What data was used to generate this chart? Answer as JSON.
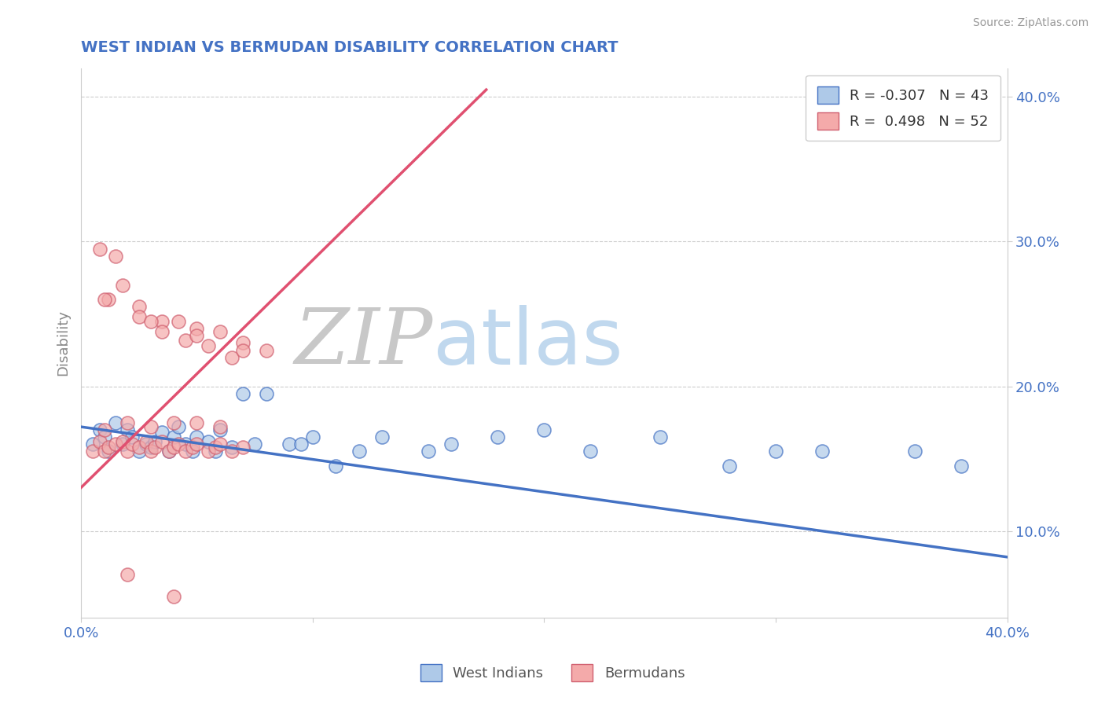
{
  "title": "WEST INDIAN VS BERMUDAN DISABILITY CORRELATION CHART",
  "source": "Source: ZipAtlas.com",
  "ylabel": "Disability",
  "xlim": [
    0.0,
    0.4
  ],
  "ylim": [
    0.04,
    0.42
  ],
  "legend_R1": "-0.307",
  "legend_N1": "43",
  "legend_R2": "0.498",
  "legend_N2": "52",
  "color_west_indian_fill": "#aec9e8",
  "color_west_indian_edge": "#4472c4",
  "color_bermudan_fill": "#f4aaaa",
  "color_bermudan_edge": "#d06070",
  "color_line_west_indian": "#4472c4",
  "color_line_bermudan": "#e05070",
  "title_color": "#4472c4",
  "tick_label_color": "#4472c4",
  "watermark_zip_color": "#c8c8c8",
  "watermark_atlas_color": "#c0d8ee",
  "west_indian_x": [
    0.005,
    0.008,
    0.01,
    0.012,
    0.015,
    0.018,
    0.02,
    0.022,
    0.025,
    0.028,
    0.03,
    0.032,
    0.035,
    0.038,
    0.04,
    0.042,
    0.045,
    0.048,
    0.05,
    0.055,
    0.058,
    0.06,
    0.065,
    0.07,
    0.075,
    0.08,
    0.09,
    0.095,
    0.1,
    0.11,
    0.12,
    0.13,
    0.15,
    0.16,
    0.18,
    0.2,
    0.22,
    0.25,
    0.28,
    0.3,
    0.32,
    0.36,
    0.38
  ],
  "west_indian_y": [
    0.16,
    0.17,
    0.165,
    0.155,
    0.175,
    0.16,
    0.17,
    0.165,
    0.155,
    0.16,
    0.158,
    0.162,
    0.168,
    0.155,
    0.165,
    0.172,
    0.16,
    0.155,
    0.165,
    0.162,
    0.155,
    0.17,
    0.158,
    0.195,
    0.16,
    0.195,
    0.16,
    0.16,
    0.165,
    0.145,
    0.155,
    0.165,
    0.155,
    0.16,
    0.165,
    0.17,
    0.155,
    0.165,
    0.145,
    0.155,
    0.155,
    0.155,
    0.145
  ],
  "bermudan_x": [
    0.005,
    0.008,
    0.01,
    0.012,
    0.015,
    0.018,
    0.02,
    0.022,
    0.025,
    0.028,
    0.03,
    0.032,
    0.035,
    0.038,
    0.04,
    0.042,
    0.045,
    0.048,
    0.05,
    0.055,
    0.058,
    0.06,
    0.065,
    0.07,
    0.008,
    0.012,
    0.018,
    0.025,
    0.035,
    0.042,
    0.05,
    0.06,
    0.07,
    0.08,
    0.01,
    0.02,
    0.03,
    0.04,
    0.05,
    0.06,
    0.015,
    0.025,
    0.035,
    0.045,
    0.055,
    0.065,
    0.01,
    0.03,
    0.05,
    0.07,
    0.02,
    0.04
  ],
  "bermudan_y": [
    0.155,
    0.162,
    0.155,
    0.158,
    0.16,
    0.162,
    0.155,
    0.16,
    0.158,
    0.162,
    0.155,
    0.158,
    0.162,
    0.155,
    0.158,
    0.16,
    0.155,
    0.158,
    0.16,
    0.155,
    0.158,
    0.16,
    0.155,
    0.158,
    0.295,
    0.26,
    0.27,
    0.255,
    0.245,
    0.245,
    0.24,
    0.238,
    0.23,
    0.225,
    0.17,
    0.175,
    0.172,
    0.175,
    0.175,
    0.172,
    0.29,
    0.248,
    0.238,
    0.232,
    0.228,
    0.22,
    0.26,
    0.245,
    0.235,
    0.225,
    0.07,
    0.055
  ],
  "wi_line_x": [
    0.0,
    0.4
  ],
  "wi_line_y": [
    0.172,
    0.082
  ],
  "berm_line_x": [
    0.0,
    0.175
  ],
  "berm_line_y": [
    0.13,
    0.405
  ]
}
